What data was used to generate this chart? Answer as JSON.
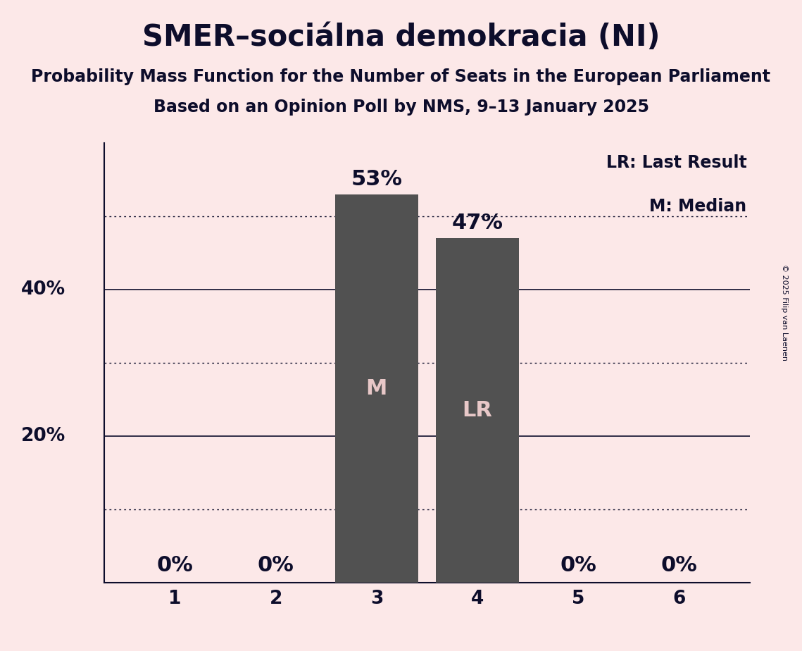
{
  "title": "SMER–sociálna demokracia (NI)",
  "subtitle1": "Probability Mass Function for the Number of Seats in the European Parliament",
  "subtitle2": "Based on an Opinion Poll by NMS, 9–13 January 2025",
  "copyright": "© 2025 Filip van Laenen",
  "categories": [
    1,
    2,
    3,
    4,
    5,
    6
  ],
  "values": [
    0,
    0,
    0.53,
    0.47,
    0,
    0
  ],
  "bar_color": "#515151",
  "median_bar": 3,
  "lr_bar": 4,
  "background_color": "#fce8e8",
  "bar_label_color": "#e8c8c8",
  "axis_color": "#0d0d2b",
  "text_color": "#0d0d2b",
  "legend_lr": "LR: Last Result",
  "legend_m": "M: Median",
  "ylim": [
    0,
    0.6
  ],
  "yticks_solid": [
    0.2,
    0.4
  ],
  "yticks_dotted": [
    0.1,
    0.3,
    0.5
  ],
  "title_fontsize": 30,
  "subtitle_fontsize": 17,
  "tick_fontsize": 19,
  "bar_label_fontsize": 22,
  "inside_label_fontsize": 22,
  "legend_fontsize": 17
}
